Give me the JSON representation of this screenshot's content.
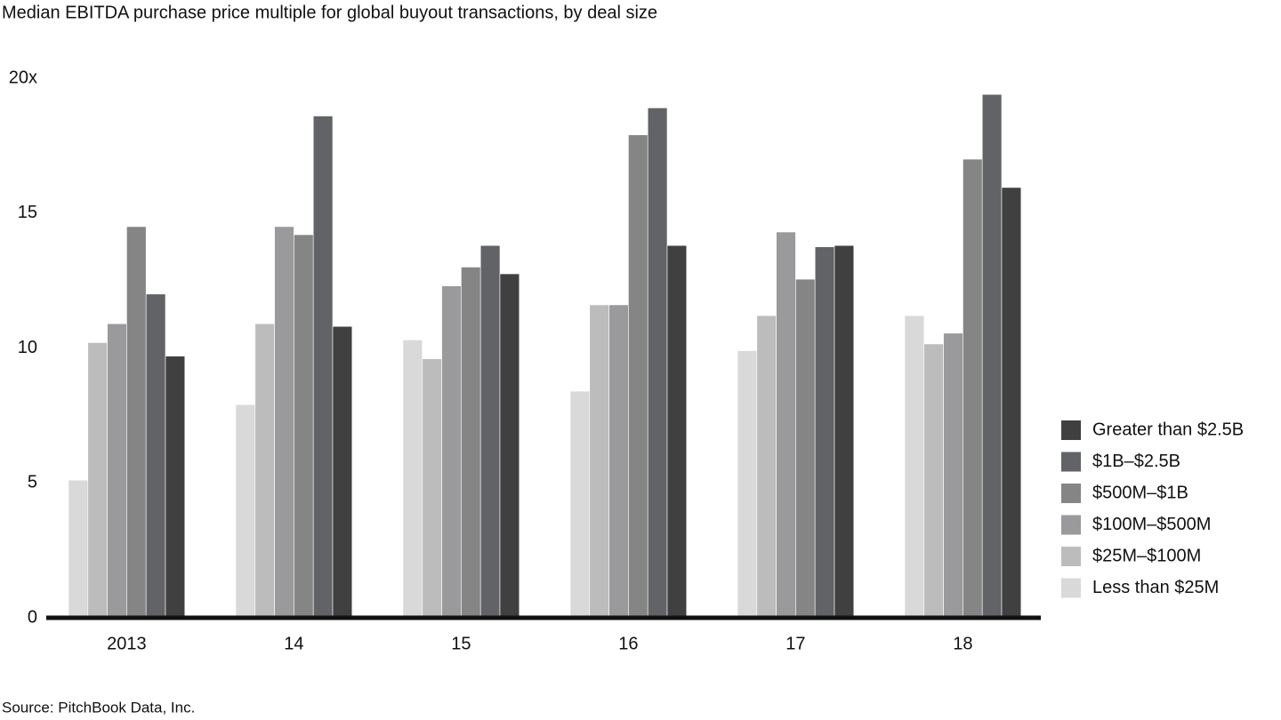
{
  "chart_data": {
    "type": "bar",
    "title": "Median EBITDA purchase price multiple for global buyout transactions, by deal size",
    "source": "Source: PitchBook Data, Inc.",
    "categories": [
      "2013",
      "14",
      "15",
      "16",
      "17",
      "18"
    ],
    "series": [
      {
        "name": "Less than $25M",
        "color": "#d9d9d9",
        "values": [
          5.1,
          7.9,
          10.3,
          8.4,
          9.9,
          11.2
        ]
      },
      {
        "name": "$25M–$100M",
        "color": "#bcbcbc",
        "values": [
          10.2,
          10.9,
          9.6,
          11.6,
          11.2,
          10.15
        ]
      },
      {
        "name": "$100M–$500M",
        "color": "#9a9a9c",
        "values": [
          10.9,
          14.5,
          12.3,
          11.6,
          14.3,
          10.55
        ]
      },
      {
        "name": "$500M–$1B",
        "color": "#858585",
        "values": [
          14.5,
          14.2,
          13.0,
          17.9,
          12.55,
          17.0
        ]
      },
      {
        "name": "$1B–$2.5B",
        "color": "#626366",
        "values": [
          12.0,
          18.6,
          13.8,
          18.9,
          13.75,
          19.4
        ]
      },
      {
        "name": "Greater than $2.5B",
        "color": "#404040",
        "values": [
          9.7,
          10.8,
          12.75,
          13.8,
          13.8,
          15.95
        ]
      }
    ],
    "ylim": [
      0,
      20
    ],
    "yticks": [
      0,
      5,
      10,
      15,
      {
        "value": 20,
        "label": "20x"
      }
    ],
    "grid": false,
    "legend": "right"
  }
}
